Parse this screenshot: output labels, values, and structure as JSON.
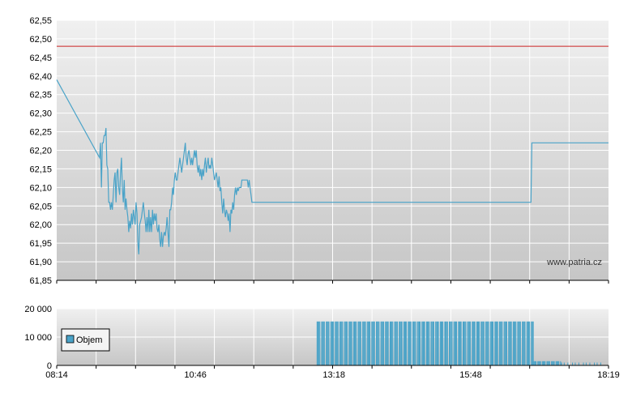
{
  "watermark": "www.patria.cz",
  "colors": {
    "price_line": "#4aa3c8",
    "reference_line": "#cc2222",
    "volume_bar": "#4aa3c8",
    "grid": "#ffffff",
    "plot_bg_top": "#f0f0f0",
    "plot_bg_bottom": "#c8c8c8"
  },
  "chart_data": [
    {
      "type": "line",
      "ylim": [
        61.85,
        62.55
      ],
      "yticks": [
        "61,85",
        "61,90",
        "61,95",
        "62,00",
        "62,05",
        "62,10",
        "62,15",
        "62,20",
        "62,25",
        "62,30",
        "62,35",
        "62,40",
        "62,45",
        "62,50",
        "62,55"
      ],
      "reference_line": 62.48,
      "x_unit": "minutes",
      "xlim": [
        "08:14",
        "18:19"
      ],
      "series": [
        {
          "values": [
            [
              "08:14",
              62.39
            ],
            [
              "09:01",
              62.18
            ],
            [
              "09:02",
              62.22
            ],
            [
              "09:03",
              62.1
            ],
            [
              "09:04",
              62.22
            ],
            [
              "09:05",
              62.22
            ],
            [
              "09:06",
              62.24
            ],
            [
              "09:07",
              62.24
            ],
            [
              "09:08",
              62.26
            ],
            [
              "09:09",
              62.16
            ],
            [
              "09:10",
              62.15
            ],
            [
              "09:11",
              62.06
            ],
            [
              "09:12",
              62.06
            ],
            [
              "09:13",
              62.04
            ],
            [
              "09:14",
              62.06
            ],
            [
              "09:15",
              62.04
            ],
            [
              "09:16",
              62.08
            ],
            [
              "09:17",
              62.12
            ],
            [
              "09:18",
              62.14
            ],
            [
              "09:19",
              62.06
            ],
            [
              "09:20",
              62.14
            ],
            [
              "09:21",
              62.15
            ],
            [
              "09:22",
              62.1
            ],
            [
              "09:23",
              62.08
            ],
            [
              "09:24",
              62.14
            ],
            [
              "09:25",
              62.18
            ],
            [
              "09:26",
              62.1
            ],
            [
              "09:27",
              62.06
            ],
            [
              "09:28",
              62.12
            ],
            [
              "09:29",
              62.04
            ],
            [
              "09:30",
              62.07
            ],
            [
              "09:31",
              62.04
            ],
            [
              "09:32",
              62.02
            ],
            [
              "09:33",
              61.98
            ],
            [
              "09:34",
              62.01
            ],
            [
              "09:35",
              61.99
            ],
            [
              "09:36",
              62.03
            ],
            [
              "09:37",
              62.0
            ],
            [
              "09:38",
              62.04
            ],
            [
              "09:39",
              62.02
            ],
            [
              "09:40",
              62.0
            ],
            [
              "09:41",
              62.06
            ],
            [
              "09:42",
              62.03
            ],
            [
              "09:43",
              61.95
            ],
            [
              "09:44",
              61.92
            ],
            [
              "09:45",
              62.0
            ],
            [
              "09:46",
              62.01
            ],
            [
              "09:47",
              62.02
            ],
            [
              "09:48",
              62.04
            ],
            [
              "09:49",
              62.06
            ],
            [
              "09:50",
              62.03
            ],
            [
              "09:51",
              62.01
            ],
            [
              "09:52",
              61.98
            ],
            [
              "09:53",
              62.02
            ],
            [
              "09:54",
              61.98
            ],
            [
              "09:55",
              62.04
            ],
            [
              "09:56",
              61.98
            ],
            [
              "09:57",
              62.02
            ],
            [
              "09:58",
              61.98
            ],
            [
              "09:59",
              62.04
            ],
            [
              "10:00",
              62.0
            ],
            [
              "10:01",
              62.03
            ],
            [
              "10:02",
              62.01
            ],
            [
              "10:03",
              62.03
            ],
            [
              "10:04",
              61.99
            ],
            [
              "10:05",
              61.98
            ],
            [
              "10:06",
              62.0
            ],
            [
              "10:07",
              61.96
            ],
            [
              "10:08",
              61.94
            ],
            [
              "10:09",
              61.98
            ],
            [
              "10:10",
              61.94
            ],
            [
              "10:11",
              61.97
            ],
            [
              "10:12",
              61.98
            ],
            [
              "10:13",
              61.97
            ],
            [
              "10:14",
              61.99
            ],
            [
              "10:15",
              62.02
            ],
            [
              "10:16",
              61.98
            ],
            [
              "10:17",
              61.94
            ],
            [
              "10:18",
              62.04
            ],
            [
              "10:19",
              62.04
            ],
            [
              "10:20",
              62.06
            ],
            [
              "10:21",
              62.1
            ],
            [
              "10:22",
              62.08
            ],
            [
              "10:23",
              62.12
            ],
            [
              "10:24",
              62.14
            ],
            [
              "10:25",
              62.12
            ],
            [
              "10:26",
              62.12
            ],
            [
              "10:27",
              62.14
            ],
            [
              "10:28",
              62.16
            ],
            [
              "10:29",
              62.18
            ],
            [
              "10:30",
              62.16
            ],
            [
              "10:31",
              62.14
            ],
            [
              "10:32",
              62.16
            ],
            [
              "10:33",
              62.18
            ],
            [
              "10:34",
              62.2
            ],
            [
              "10:35",
              62.22
            ],
            [
              "10:36",
              62.18
            ],
            [
              "10:37",
              62.16
            ],
            [
              "10:38",
              62.19
            ],
            [
              "10:39",
              62.2
            ],
            [
              "10:40",
              62.18
            ],
            [
              "10:41",
              62.16
            ],
            [
              "10:42",
              62.18
            ],
            [
              "10:43",
              62.16
            ],
            [
              "10:44",
              62.18
            ],
            [
              "10:45",
              62.2
            ],
            [
              "10:46",
              62.18
            ],
            [
              "10:47",
              62.2
            ],
            [
              "10:48",
              62.16
            ],
            [
              "10:49",
              62.14
            ],
            [
              "10:50",
              62.16
            ],
            [
              "10:51",
              62.13
            ],
            [
              "10:52",
              62.15
            ],
            [
              "10:53",
              62.12
            ],
            [
              "10:54",
              62.15
            ],
            [
              "10:55",
              62.13
            ],
            [
              "10:56",
              62.16
            ],
            [
              "10:57",
              62.18
            ],
            [
              "10:58",
              62.14
            ],
            [
              "10:59",
              62.16
            ],
            [
              "11:00",
              62.18
            ],
            [
              "11:01",
              62.15
            ],
            [
              "11:02",
              62.16
            ],
            [
              "11:03",
              62.15
            ],
            [
              "11:04",
              62.18
            ],
            [
              "11:05",
              62.16
            ],
            [
              "11:06",
              62.14
            ],
            [
              "11:07",
              62.12
            ],
            [
              "11:08",
              62.13
            ],
            [
              "11:09",
              62.14
            ],
            [
              "11:10",
              62.12
            ],
            [
              "11:11",
              62.1
            ],
            [
              "11:12",
              62.13
            ],
            [
              "11:13",
              62.09
            ],
            [
              "11:14",
              62.1
            ],
            [
              "11:15",
              62.06
            ],
            [
              "11:16",
              62.03
            ],
            [
              "11:17",
              62.07
            ],
            [
              "11:18",
              62.04
            ],
            [
              "11:19",
              62.02
            ],
            [
              "11:20",
              62.04
            ],
            [
              "11:21",
              62.03
            ],
            [
              "11:22",
              62.01
            ],
            [
              "11:23",
              62.03
            ],
            [
              "11:24",
              61.98
            ],
            [
              "11:25",
              62.04
            ],
            [
              "11:26",
              62.03
            ],
            [
              "11:27",
              62.06
            ],
            [
              "11:28",
              62.04
            ],
            [
              "11:29",
              62.08
            ],
            [
              "11:30",
              62.1
            ],
            [
              "11:31",
              62.08
            ],
            [
              "11:32",
              62.1
            ],
            [
              "11:33",
              62.09
            ],
            [
              "11:34",
              62.1
            ],
            [
              "11:35",
              62.1
            ],
            [
              "11:36",
              62.1
            ],
            [
              "11:37",
              62.12
            ],
            [
              "11:38",
              62.12
            ],
            [
              "11:39",
              62.12
            ],
            [
              "11:40",
              62.12
            ],
            [
              "11:41",
              62.12
            ],
            [
              "11:42",
              62.12
            ],
            [
              "11:43",
              62.12
            ],
            [
              "11:44",
              62.1
            ],
            [
              "11:45",
              62.12
            ],
            [
              "11:46",
              62.1
            ],
            [
              "11:47",
              62.08
            ],
            [
              "11:48",
              62.06
            ],
            [
              "11:50",
              62.06
            ],
            [
              "16:54",
              62.06
            ],
            [
              "16:55",
              62.22
            ],
            [
              "18:19",
              62.22
            ]
          ]
        }
      ]
    },
    {
      "type": "bar",
      "ylim": [
        0,
        20000
      ],
      "yticks": [
        "0",
        "10 000",
        "20 000"
      ],
      "xticks": [
        "08:14",
        "10:46",
        "13:18",
        "15:48",
        "18:19"
      ],
      "legend": "top-left",
      "series": [
        {
          "name": "Objem",
          "segments": [
            {
              "from": "12:59",
              "to": "16:56",
              "value": 15500,
              "pattern": "dense"
            },
            {
              "from": "16:56",
              "to": "17:26",
              "value": 1500,
              "pattern": "dense"
            },
            {
              "from": "17:27",
              "to": "18:12",
              "value": 1000,
              "pattern": "sparse"
            }
          ]
        }
      ]
    }
  ]
}
